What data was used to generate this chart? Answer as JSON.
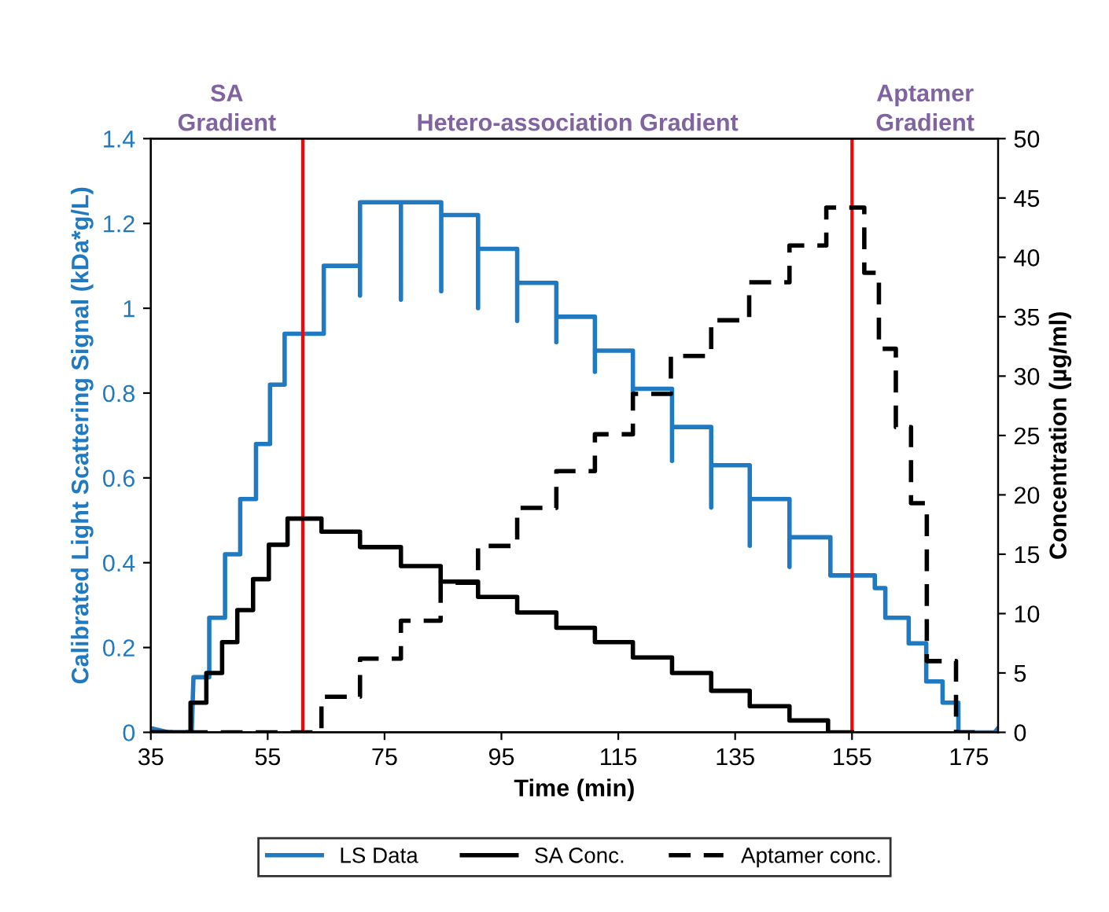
{
  "chart_data": {
    "type": "line",
    "xlabel": "Time (min)",
    "ylabel": "Calibrated Light Scattering Signal (kDa*g/L)",
    "y2label": "Concentration (µg/ml)",
    "xlim": [
      35,
      180
    ],
    "xticks": [
      35,
      55,
      75,
      95,
      115,
      135,
      155,
      175
    ],
    "ylim": [
      0,
      1.4
    ],
    "yticks": [
      0,
      0.2,
      0.4,
      0.6,
      0.8,
      1,
      1.2,
      1.4
    ],
    "y2lim": [
      0,
      50
    ],
    "y2ticks": [
      0,
      5,
      10,
      15,
      20,
      25,
      30,
      35,
      40,
      45,
      50
    ],
    "legend": "bottom",
    "grid": false,
    "ref_lines": [
      {
        "axis": "x",
        "value": 61,
        "color": "#ff0000"
      },
      {
        "axis": "x",
        "value": 155,
        "color": "#ff0000"
      }
    ],
    "annotations": [
      "SA\nGradient",
      "Hetero-association Gradient",
      "Aptamer\nGradient"
    ],
    "series": [
      {
        "name": "LS Data",
        "color": "#1f7ac2",
        "line_style": "solid",
        "x": [
          35,
          38,
          42,
          42.3,
          45,
          45,
          47.7,
          47.7,
          50.3,
          50.3,
          53,
          53,
          55.4,
          55.4,
          57.9,
          57.9,
          64.6,
          64.6,
          70.8,
          70.8,
          70.8,
          77.8,
          77.8,
          77.8,
          84.7,
          84.7,
          84.7,
          91,
          91,
          91,
          97.7,
          97.7,
          97.7,
          104.4,
          104.4,
          104.4,
          111,
          111,
          111,
          117.5,
          117.5,
          117.5,
          124.2,
          124.2,
          124.2,
          130.9,
          130.9,
          130.9,
          137.5,
          137.5,
          137.5,
          144.3,
          144.3,
          144.3,
          151.3,
          151.3,
          157.1,
          158.9,
          158.9,
          160.7,
          160.7,
          164.7,
          164.7,
          167.7,
          167.7,
          170.5,
          170.5,
          173.2,
          173.2,
          179.4,
          180
        ],
        "values": [
          0.01,
          0,
          0,
          0.13,
          0.13,
          0.27,
          0.27,
          0.42,
          0.42,
          0.55,
          0.55,
          0.68,
          0.68,
          0.82,
          0.82,
          0.94,
          0.94,
          1.1,
          1.1,
          1.03,
          1.25,
          1.25,
          1.02,
          1.25,
          1.25,
          1.04,
          1.22,
          1.22,
          1,
          1.14,
          1.14,
          0.97,
          1.06,
          1.06,
          0.92,
          0.98,
          0.98,
          0.85,
          0.9,
          0.9,
          0.8,
          0.81,
          0.81,
          0.64,
          0.72,
          0.72,
          0.53,
          0.63,
          0.63,
          0.44,
          0.55,
          0.55,
          0.39,
          0.46,
          0.46,
          0.37,
          0.37,
          0.37,
          0.34,
          0.34,
          0.27,
          0.27,
          0.21,
          0.21,
          0.12,
          0.12,
          0.07,
          0.07,
          0,
          0,
          0.01
        ]
      },
      {
        "name": "SA Conc.",
        "type": "step",
        "axis": "y2",
        "color": "#000000",
        "line_style": "solid",
        "x": [
          35,
          41.8,
          44.5,
          47.2,
          49.8,
          52.5,
          55.2,
          58.4,
          64.2,
          70.8,
          77.8,
          84.6,
          91,
          97.7,
          104.4,
          111,
          117.5,
          124.2,
          130.9,
          137.5,
          144.3,
          150.9,
          155
        ],
        "values": [
          0,
          2.5,
          5,
          7.6,
          10.3,
          12.9,
          15.8,
          18,
          16.9,
          15.6,
          14,
          12.7,
          11.4,
          10.1,
          8.8,
          7.6,
          6.3,
          5,
          3.5,
          2.2,
          1,
          0,
          0
        ]
      },
      {
        "name": "Aptamer conc.",
        "type": "step",
        "axis": "y2",
        "color": "#000000",
        "line_style": "dashed",
        "x": [
          35,
          64.2,
          70.8,
          77.8,
          84.6,
          91,
          97.7,
          104.4,
          111,
          117.5,
          124,
          130.9,
          137.4,
          144.3,
          150.6,
          157.1,
          159.6,
          162.5,
          165.1,
          167.8,
          172.8,
          176
        ],
        "values": [
          0,
          3,
          6.2,
          9.4,
          12.6,
          15.7,
          18.9,
          22,
          25.1,
          28.5,
          31.7,
          34.7,
          37.9,
          41,
          44.2,
          38.7,
          32.3,
          25.7,
          19.3,
          6,
          0,
          0
        ]
      }
    ]
  }
}
